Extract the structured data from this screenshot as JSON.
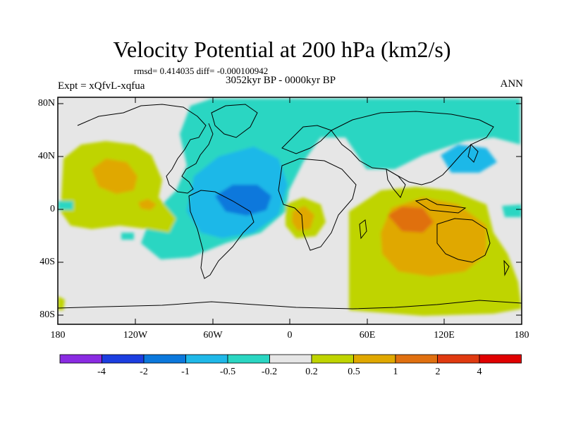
{
  "title": "Velocity Potential at 200 hPa (km2/s)",
  "stats": "rmsd= 0.414035 diff= -0.000100942",
  "experiment": "Expt = xQfvL-xqfua",
  "period": "3052kyr BP - 0000kyr BP",
  "season": "ANN",
  "lat_labels": [
    "80N",
    "40N",
    "0",
    "40S",
    "80S"
  ],
  "lon_labels": [
    "180",
    "120W",
    "60W",
    "0",
    "60E",
    "120E",
    "180"
  ],
  "colorbar": {
    "labels": [
      "-4",
      "-2",
      "-1",
      "-0.5",
      "-0.2",
      "0.2",
      "0.5",
      "1",
      "2",
      "4"
    ],
    "colors": [
      "#8a2be2",
      "#1c3ee0",
      "#0b78dc",
      "#1fb8e8",
      "#2ad6c2",
      "#e6e6e6",
      "#bfd400",
      "#e0a800",
      "#e07010",
      "#e03a10",
      "#e00000"
    ]
  },
  "map_colors": {
    "ocean_bg": "#e6e6e6",
    "coast": "#000000"
  }
}
